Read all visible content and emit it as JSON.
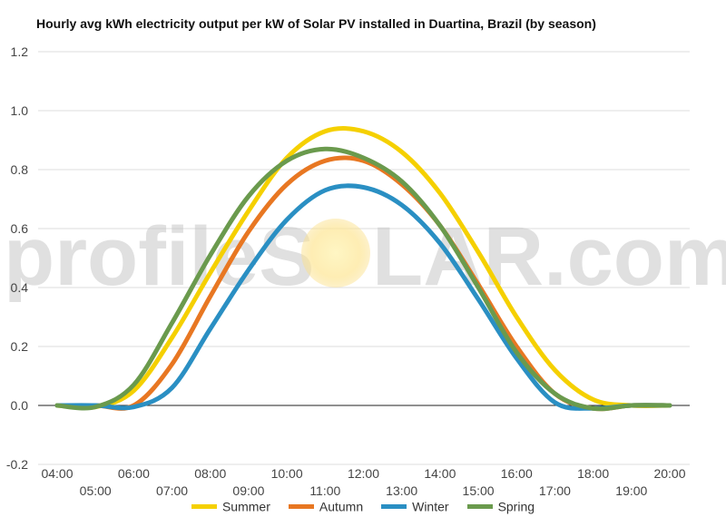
{
  "chart_data": {
    "type": "line",
    "title": "Hourly avg kWh electricity output per kW of Solar PV installed in Duartina, Brazil (by season)",
    "xlabel": "",
    "ylabel": "",
    "ylim": [
      -0.2,
      1.2
    ],
    "yticks": [
      "-0.2",
      "0.0",
      "0.2",
      "0.4",
      "0.6",
      "0.8",
      "1.0",
      "1.2"
    ],
    "grid": true,
    "legend_position": "bottom",
    "x": [
      "04:00",
      "05:00",
      "06:00",
      "07:00",
      "08:00",
      "09:00",
      "10:00",
      "11:00",
      "12:00",
      "13:00",
      "14:00",
      "15:00",
      "16:00",
      "17:00",
      "18:00",
      "19:00",
      "20:00"
    ],
    "series": [
      {
        "name": "Summer",
        "color": "#f5d000",
        "values": [
          0.0,
          -0.005,
          0.05,
          0.23,
          0.45,
          0.66,
          0.84,
          0.93,
          0.93,
          0.86,
          0.72,
          0.52,
          0.3,
          0.12,
          0.02,
          0.0,
          0.0
        ]
      },
      {
        "name": "Autumn",
        "color": "#e87722",
        "values": [
          0.0,
          0.0,
          0.0,
          0.14,
          0.37,
          0.59,
          0.75,
          0.83,
          0.83,
          0.75,
          0.61,
          0.41,
          0.2,
          0.04,
          -0.01,
          0.0,
          0.0
        ]
      },
      {
        "name": "Winter",
        "color": "#2a8fc3",
        "values": [
          0.0,
          0.0,
          -0.005,
          0.06,
          0.26,
          0.46,
          0.63,
          0.73,
          0.74,
          0.68,
          0.55,
          0.36,
          0.16,
          0.01,
          -0.01,
          0.0,
          0.0
        ]
      },
      {
        "name": "Spring",
        "color": "#6a9a4d",
        "values": [
          0.0,
          -0.005,
          0.07,
          0.28,
          0.51,
          0.71,
          0.83,
          0.87,
          0.84,
          0.76,
          0.61,
          0.4,
          0.18,
          0.04,
          -0.01,
          0.0,
          0.0
        ]
      }
    ]
  },
  "watermark": {
    "left": "profileS",
    "right": "LAR.com"
  }
}
